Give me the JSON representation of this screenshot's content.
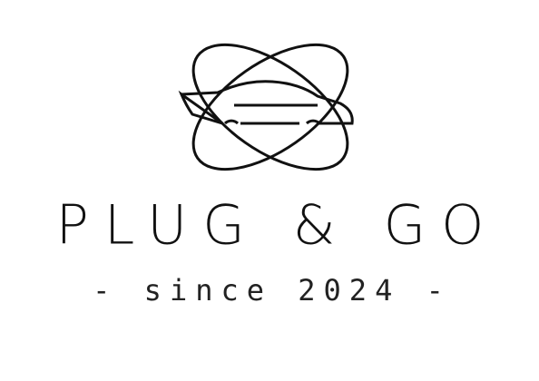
{
  "brand": {
    "name": "PLUG & GO",
    "tagline": "- since 2024 -"
  }
}
